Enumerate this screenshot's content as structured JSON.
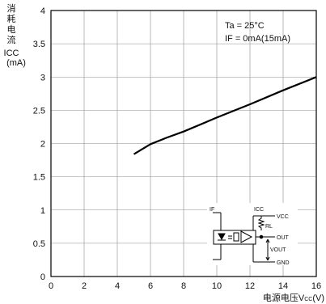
{
  "chart_data": {
    "type": "line",
    "ylabel_lines": [
      "消",
      "耗",
      "电",
      "流"
    ],
    "ylabel_symbol": "ICC",
    "ylabel_unit": "(mA)",
    "xlabel_prefix": "电源电压V",
    "xlabel_sub": "CC",
    "xlabel_unit": "(V)",
    "xlim": [
      0,
      16
    ],
    "ylim": [
      0,
      4
    ],
    "xticks": [
      0,
      2,
      4,
      6,
      8,
      10,
      12,
      14,
      16
    ],
    "yticks": [
      0,
      0.5,
      1,
      1.5,
      2,
      2.5,
      3,
      3.5,
      4
    ],
    "ytick_labels": [
      "0",
      "0.5",
      "1",
      "1.5",
      "2",
      "2.5",
      "3",
      "3.5",
      "4"
    ],
    "grid": true,
    "annotations": [
      "Ta = 25°C",
      "IF = 0mA(15mA)"
    ],
    "series": [
      {
        "x": [
          5,
          6,
          7,
          8,
          10,
          12,
          14,
          16
        ],
        "y": [
          1.84,
          1.99,
          2.09,
          2.18,
          2.39,
          2.59,
          2.8,
          3.0
        ]
      }
    ],
    "color": "#000000"
  },
  "circuit": {
    "if_label": "IF",
    "icc_label": "ICC",
    "vcc_label": "VCC",
    "rl_label": "RL",
    "out_label": "OUT",
    "vout_label": "VOUT",
    "gnd_label": "GND"
  }
}
